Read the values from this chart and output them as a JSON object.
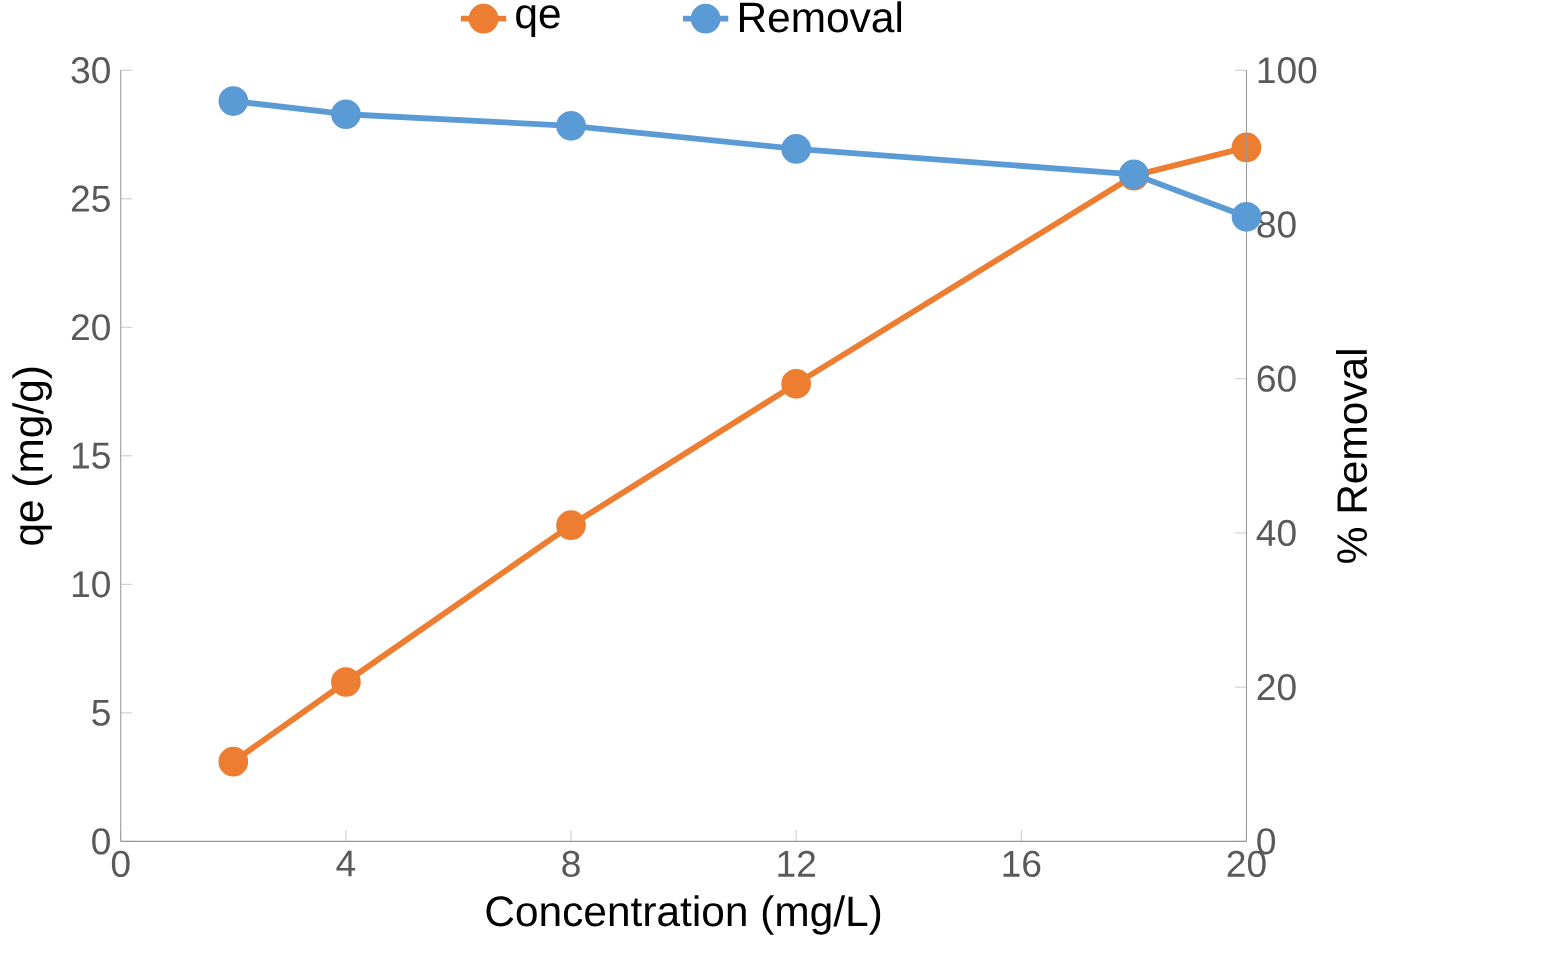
{
  "chart_data": {
    "type": "line",
    "xlabel": "Concentration (mg/L)",
    "ylabel": "qe (mg/g)",
    "y2label": "% Removal",
    "x": [
      2,
      4,
      8,
      12,
      18,
      20
    ],
    "series": [
      {
        "name": "qe",
        "color": "#ed7d31",
        "values": [
          3.1,
          6.2,
          12.3,
          17.8,
          25.9,
          27.0
        ]
      },
      {
        "name": "Removal",
        "color": "#5b9bd5",
        "axis": "y2",
        "values": [
          96,
          94.3,
          92.8,
          89.8,
          86.5,
          81
        ]
      }
    ],
    "xlim": [
      0,
      20
    ],
    "xticks": [
      0,
      4,
      8,
      12,
      16,
      20
    ],
    "ylim": [
      0,
      30
    ],
    "yticks": [
      0,
      5,
      10,
      15,
      20,
      25,
      30
    ],
    "y2lim": [
      0,
      100
    ],
    "y2ticks": [
      0,
      20,
      40,
      60,
      80,
      100
    ],
    "marker": "circle",
    "line_style": "solid",
    "legend": "top",
    "grid": false
  }
}
